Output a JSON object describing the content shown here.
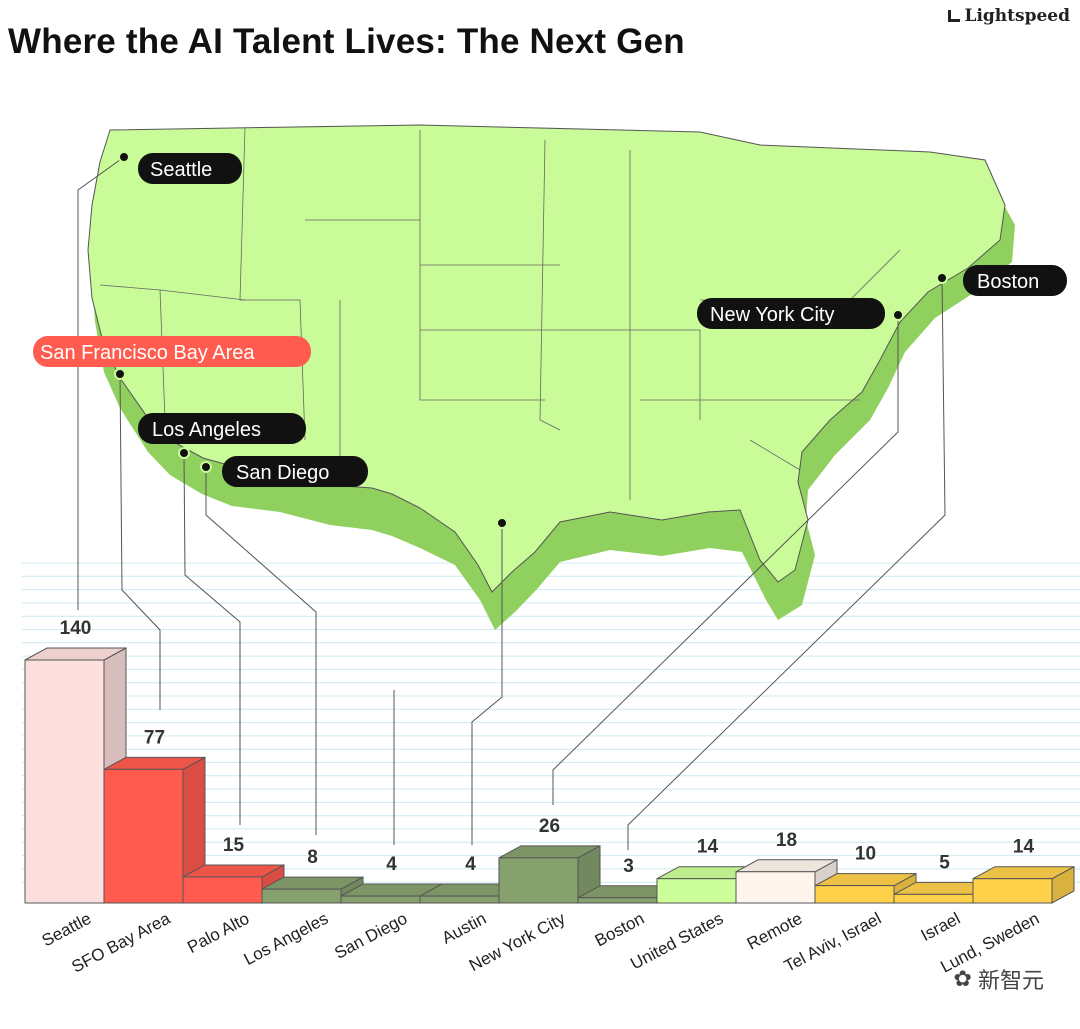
{
  "title": "Where the AI Talent Lives: The Next Gen",
  "brand": "Lightspeed",
  "watermark": "新智元",
  "chart_data": {
    "type": "bar",
    "title": "Where the AI Talent Lives: The Next Gen",
    "xlabel": "",
    "ylabel": "",
    "ylim": [
      0,
      140
    ],
    "categories": [
      "Seattle",
      "SFO Bay Area",
      "Palo Alto",
      "Los Angeles",
      "San Diego",
      "Austin",
      "New York City",
      "Boston",
      "United States",
      "Remote",
      "Tel Aviv, Israel",
      "Israel",
      "Lund, Sweden"
    ],
    "values": [
      140,
      77,
      15,
      8,
      4,
      4,
      26,
      3,
      14,
      18,
      10,
      5,
      14
    ],
    "colors": [
      "#fde0de",
      "#ff5b4f",
      "#ff5b4f",
      "#86a06e",
      "#86a06e",
      "#86a06e",
      "#86a06e",
      "#86a06e",
      "#ccff99",
      "#fff5ec",
      "#ffd04a",
      "#ffd04a",
      "#ffd04a"
    ],
    "map_cities": [
      {
        "name": "Seattle",
        "highlight": false
      },
      {
        "name": "San Francisco Bay Area",
        "highlight": true
      },
      {
        "name": "Los Angeles",
        "highlight": false
      },
      {
        "name": "San Diego",
        "highlight": false
      },
      {
        "name": "New York City",
        "highlight": false
      },
      {
        "name": "Boston",
        "highlight": false
      }
    ],
    "map_fill": "#c9fb98",
    "label_bg": "#111111",
    "highlight_bg": "#ff5b4f"
  }
}
